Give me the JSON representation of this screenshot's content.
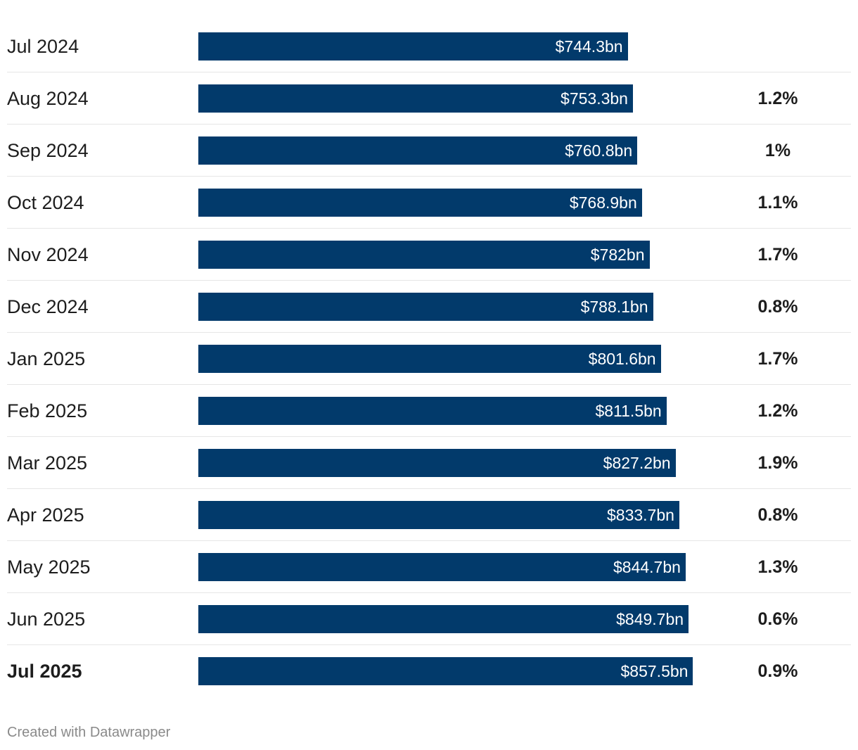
{
  "chart_data": {
    "type": "bar",
    "orientation": "horizontal",
    "categories": [
      "Jul 2024",
      "Aug 2024",
      "Sep 2024",
      "Oct 2024",
      "Nov 2024",
      "Dec 2024",
      "Jan 2025",
      "Feb 2025",
      "Mar 2025",
      "Apr 2025",
      "May 2025",
      "Jun 2025",
      "Jul 2025"
    ],
    "values": [
      744.3,
      753.3,
      760.8,
      768.9,
      782,
      788.1,
      801.6,
      811.5,
      827.2,
      833.7,
      844.7,
      849.7,
      857.5
    ],
    "value_labels": [
      "$744.3bn",
      "$753.3bn",
      "$760.8bn",
      "$768.9bn",
      "$782bn",
      "$788.1bn",
      "$801.6bn",
      "$811.5bn",
      "$827.2bn",
      "$833.7bn",
      "$844.7bn",
      "$849.7bn",
      "$857.5bn"
    ],
    "change_labels": [
      "",
      "1.2%",
      "1%",
      "1.1%",
      "1.7%",
      "0.8%",
      "1.7%",
      "1.2%",
      "1.9%",
      "0.8%",
      "1.3%",
      "0.6%",
      "0.9%"
    ],
    "highlighted_category": "Jul 2025",
    "bar_color": "#023a6b",
    "xlim": [
      0,
      1130
    ],
    "grid": false,
    "title": "",
    "xlabel": "",
    "ylabel": ""
  },
  "footer": {
    "credit": "Created with Datawrapper"
  }
}
